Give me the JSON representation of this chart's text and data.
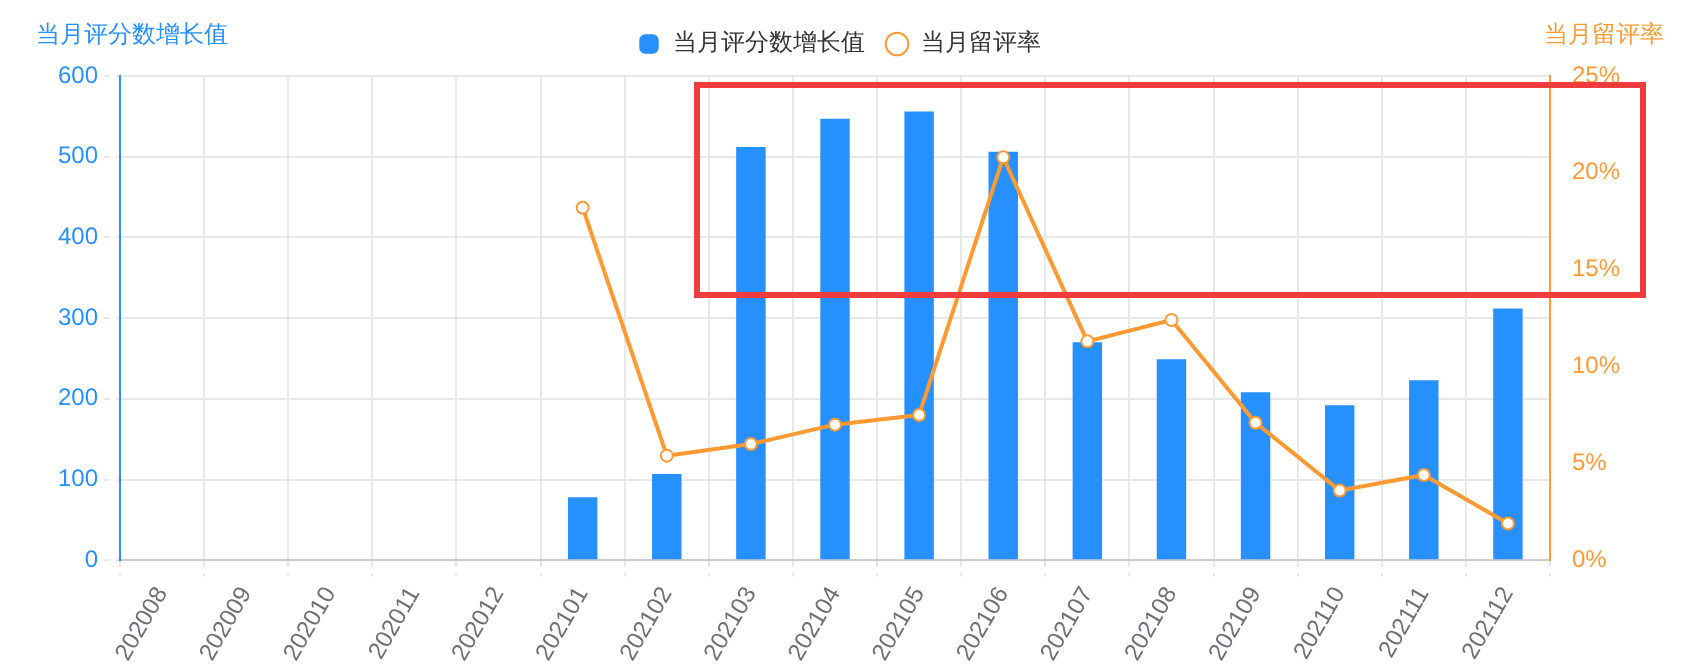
{
  "chart_data": {
    "type": "bar",
    "ylabel": "当月评分数增长值",
    "y2label": "当月留评率",
    "categories": [
      "202008",
      "202009",
      "202010",
      "202011",
      "202012",
      "202101",
      "202102",
      "202103",
      "202104",
      "202105",
      "202106",
      "202107",
      "202108",
      "202109",
      "202110",
      "202111",
      "202112"
    ],
    "series": [
      {
        "name": "当月评分数增长值",
        "color": "#2690ff",
        "values": [
          0,
          0,
          0,
          0,
          0,
          78,
          107,
          512,
          547,
          556,
          506,
          270,
          249,
          208,
          192,
          223,
          312
        ]
      },
      {
        "name": "当月留评率",
        "type": "line",
        "axis": "y2",
        "color": "#ff9a33",
        "marker": "circle",
        "values": [
          null,
          null,
          null,
          null,
          null,
          18.2,
          5.4,
          6.0,
          7.0,
          7.5,
          20.8,
          11.3,
          12.4,
          7.1,
          3.6,
          4.4,
          1.9
        ]
      }
    ],
    "ylim": [
      0,
      600
    ],
    "yticks": [
      0,
      100,
      200,
      300,
      400,
      500,
      600
    ],
    "y2lim": [
      0,
      25
    ],
    "y2ticks": [
      {
        "value": 0,
        "label": "0%"
      },
      {
        "value": 5,
        "label": "5%"
      },
      {
        "value": 10,
        "label": "10%"
      },
      {
        "value": 15,
        "label": "15%"
      },
      {
        "value": 20,
        "label": "20%"
      },
      {
        "value": 25,
        "label": "25%"
      }
    ],
    "grid": true,
    "legend": "top"
  }
}
